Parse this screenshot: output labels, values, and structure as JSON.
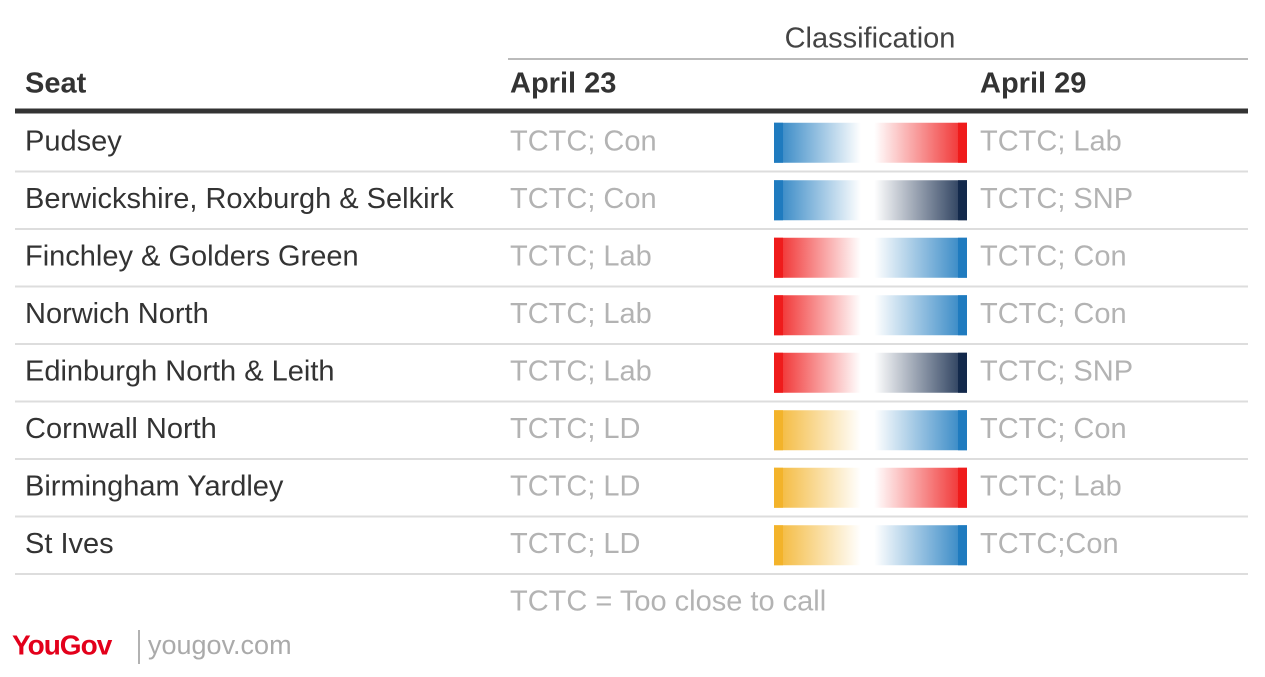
{
  "table": {
    "group_header": "Classification",
    "columns": [
      "Seat",
      "April 23",
      "April 29"
    ],
    "rows": [
      {
        "seat": "Pudsey",
        "from": "TCTC; Con",
        "to": "TCTC; Lab",
        "from_color": "#1f7bbf",
        "to_color": "#ef1b1b"
      },
      {
        "seat": "Berwickshire, Roxburgh & Selkirk",
        "from": "TCTC; Con",
        "to": "TCTC; SNP",
        "from_color": "#1f7bbf",
        "to_color": "#13294b"
      },
      {
        "seat": "Finchley & Golders Green",
        "from": "TCTC; Lab",
        "to": "TCTC; Con",
        "from_color": "#ef1b1b",
        "to_color": "#1f7bbf"
      },
      {
        "seat": "Norwich North",
        "from": "TCTC; Lab",
        "to": "TCTC; Con",
        "from_color": "#ef1b1b",
        "to_color": "#1f7bbf"
      },
      {
        "seat": "Edinburgh North & Leith",
        "from": "TCTC; Lab",
        "to": "TCTC; SNP",
        "from_color": "#ef1b1b",
        "to_color": "#13294b"
      },
      {
        "seat": "Cornwall North",
        "from": "TCTC; LD",
        "to": "TCTC; Con",
        "from_color": "#f3b32a",
        "to_color": "#1f7bbf"
      },
      {
        "seat": "Birmingham Yardley",
        "from": "TCTC; LD",
        "to": "TCTC; Lab",
        "from_color": "#f3b32a",
        "to_color": "#ef1b1b"
      },
      {
        "seat": "St Ives",
        "from": "TCTC; LD",
        "to": "TCTC;Con",
        "from_color": "#f3b32a",
        "to_color": "#1f7bbf"
      }
    ],
    "footnote": "TCTC = Too close to call"
  },
  "footer": {
    "logo": "YouGov",
    "url": "yougov.com"
  }
}
